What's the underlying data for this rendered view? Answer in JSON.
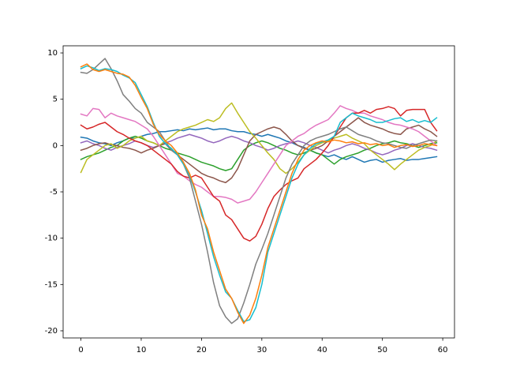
{
  "chart_data": {
    "type": "line",
    "x": [
      0,
      1,
      2,
      3,
      4,
      5,
      6,
      7,
      8,
      9,
      10,
      11,
      12,
      13,
      14,
      15,
      16,
      17,
      18,
      19,
      20,
      21,
      22,
      23,
      24,
      25,
      26,
      27,
      28,
      29,
      30,
      31,
      32,
      33,
      34,
      35,
      36,
      37,
      38,
      39,
      40,
      41,
      42,
      43,
      44,
      45,
      46,
      47,
      48,
      49,
      50,
      51,
      52,
      53,
      54,
      55,
      56,
      57,
      58,
      59
    ],
    "xlim": [
      -2.95,
      61.95
    ],
    "xticks": [
      0,
      10,
      20,
      30,
      40,
      50,
      60
    ],
    "ylim": [
      -20.77,
      10.77
    ],
    "yticks": [
      -20,
      -15,
      -10,
      -5,
      0,
      5,
      10
    ],
    "series": [
      {
        "color": "#1f77b4",
        "values": [
          0.9,
          0.8,
          0.5,
          0.3,
          0.2,
          0.0,
          0.3,
          0.5,
          0.8,
          0.8,
          1.0,
          1.2,
          1.3,
          1.5,
          1.5,
          1.6,
          1.7,
          1.6,
          1.8,
          1.7,
          1.8,
          1.9,
          1.7,
          1.8,
          1.8,
          1.6,
          1.5,
          1.5,
          1.3,
          1.2,
          1.0,
          1.2,
          1.0,
          0.8,
          0.5,
          0.3,
          0.0,
          -0.2,
          -0.5,
          -0.8,
          -1.0,
          -1.2,
          -1.0,
          -1.3,
          -1.5,
          -1.2,
          -1.5,
          -1.8,
          -1.6,
          -1.5,
          -1.8,
          -1.6,
          -1.5,
          -1.4,
          -1.6,
          -1.5,
          -1.5,
          -1.4,
          -1.3,
          -1.2
        ]
      },
      {
        "color": "#2ca02c",
        "values": [
          -1.5,
          -1.2,
          -1.0,
          -0.8,
          -0.5,
          -0.2,
          0.0,
          0.5,
          0.8,
          1.0,
          0.8,
          0.5,
          0.3,
          0.0,
          -0.3,
          -0.5,
          -0.8,
          -1.0,
          -1.2,
          -1.5,
          -1.8,
          -2.0,
          -2.2,
          -2.5,
          -2.7,
          -2.5,
          -1.5,
          -0.5,
          0.0,
          0.3,
          0.5,
          0.3,
          0.0,
          -0.3,
          -0.5,
          -0.8,
          -1.0,
          -0.8,
          -0.5,
          -0.8,
          -1.0,
          -1.5,
          -2.0,
          -1.5,
          -1.2,
          -1.0,
          -0.8,
          -0.5,
          -0.3,
          0.0,
          0.2,
          0.3,
          0.5,
          0.3,
          0.2,
          0.0,
          -0.2,
          0.0,
          0.2,
          0.3
        ]
      },
      {
        "color": "#9467bd",
        "values": [
          0.3,
          0.5,
          0.2,
          0.0,
          -0.3,
          -0.5,
          -0.2,
          0.0,
          0.2,
          0.5,
          0.3,
          0.0,
          -0.2,
          0.0,
          0.3,
          0.5,
          0.8,
          1.0,
          1.2,
          1.0,
          0.8,
          0.5,
          0.3,
          0.5,
          0.8,
          1.0,
          0.8,
          0.5,
          0.3,
          0.0,
          -0.2,
          -0.5,
          -0.3,
          0.0,
          0.2,
          0.3,
          0.5,
          0.3,
          0.0,
          -0.2,
          -0.5,
          -0.8,
          -0.5,
          -0.3,
          0.0,
          0.2,
          0.0,
          -0.3,
          -0.5,
          -0.8,
          -1.0,
          -0.8,
          -0.5,
          -0.3,
          0.0,
          0.2,
          0.0,
          -0.2,
          -0.3,
          -0.5
        ]
      },
      {
        "color": "#8c564b",
        "values": [
          -0.5,
          -0.3,
          0.0,
          0.2,
          0.3,
          0.1,
          0.0,
          -0.2,
          -0.3,
          -0.5,
          -0.8,
          -0.5,
          -0.3,
          0.0,
          0.2,
          -0.5,
          -1.0,
          -1.5,
          -2.0,
          -2.5,
          -3.0,
          -3.3,
          -3.5,
          -3.8,
          -4.0,
          -3.5,
          -2.5,
          -1.0,
          0.5,
          1.2,
          1.5,
          1.8,
          2.0,
          1.8,
          1.2,
          0.5,
          0.0,
          -0.3,
          -0.5,
          -0.3,
          0.0,
          0.5,
          1.0,
          1.5,
          2.0,
          2.5,
          3.0,
          2.5,
          2.2,
          2.0,
          1.8,
          1.5,
          1.3,
          1.2,
          1.8,
          2.0,
          2.2,
          1.8,
          1.5,
          1.0
        ]
      },
      {
        "color": "#bcbd22",
        "values": [
          -2.9,
          -1.5,
          -1.0,
          -0.5,
          0.0,
          0.2,
          -0.3,
          0.0,
          0.5,
          0.8,
          1.0,
          0.5,
          0.3,
          0.0,
          0.5,
          1.0,
          1.5,
          1.8,
          2.0,
          2.2,
          2.5,
          2.8,
          2.6,
          3.0,
          4.0,
          4.6,
          3.5,
          2.5,
          1.5,
          0.8,
          0.0,
          -0.8,
          -1.5,
          -2.5,
          -3.0,
          -2.5,
          -1.8,
          -1.0,
          -0.5,
          0.0,
          0.3,
          0.5,
          0.8,
          1.0,
          1.2,
          0.8,
          0.5,
          0.2,
          -0.5,
          -1.0,
          -1.5,
          -2.0,
          -2.6,
          -2.0,
          -1.5,
          -1.0,
          -0.5,
          -0.2,
          0.0,
          0.5
        ]
      },
      {
        "color": "#e377c2",
        "values": [
          3.4,
          3.2,
          4.0,
          3.9,
          3.0,
          3.5,
          3.2,
          3.0,
          2.8,
          2.6,
          2.2,
          1.8,
          1.0,
          0.0,
          -1.0,
          -2.0,
          -3.0,
          -3.3,
          -3.8,
          -4.2,
          -4.5,
          -5.0,
          -5.5,
          -5.5,
          -5.6,
          -5.8,
          -6.2,
          -6.0,
          -5.8,
          -5.0,
          -4.0,
          -3.0,
          -2.0,
          -1.0,
          0.0,
          0.5,
          1.0,
          1.3,
          1.8,
          2.2,
          2.5,
          2.8,
          3.5,
          4.3,
          4.0,
          3.8,
          3.5,
          3.5,
          3.2,
          3.0,
          2.8,
          2.5,
          2.3,
          2.2,
          2.0,
          1.8,
          1.5,
          1.0,
          0.5,
          0.0
        ]
      },
      {
        "color": "#d62728",
        "values": [
          2.2,
          1.8,
          2.0,
          2.3,
          2.5,
          2.0,
          1.5,
          1.2,
          0.8,
          0.5,
          0.3,
          0.0,
          -0.5,
          -1.0,
          -1.5,
          -2.0,
          -2.8,
          -3.3,
          -3.5,
          -3.2,
          -3.5,
          -4.5,
          -5.5,
          -6.0,
          -7.5,
          -8.0,
          -9.0,
          -10.0,
          -10.3,
          -9.8,
          -8.5,
          -6.8,
          -5.5,
          -4.8,
          -4.2,
          -3.8,
          -3.5,
          -2.5,
          -2.0,
          -1.5,
          -0.8,
          0.0,
          1.0,
          2.0,
          3.0,
          3.5,
          3.5,
          3.8,
          3.5,
          3.9,
          4.0,
          4.2,
          4.0,
          3.2,
          3.8,
          3.9,
          3.9,
          3.9,
          2.5,
          1.6
        ]
      },
      {
        "color": "#7f7f7f",
        "values": [
          7.9,
          7.8,
          8.2,
          8.8,
          9.4,
          8.3,
          7.0,
          5.5,
          4.8,
          4.0,
          3.5,
          2.5,
          2.0,
          1.5,
          0.5,
          -0.5,
          -1.0,
          -2.0,
          -3.5,
          -6.0,
          -8.5,
          -11.5,
          -14.8,
          -17.3,
          -18.5,
          -19.2,
          -18.7,
          -17.0,
          -15.0,
          -12.8,
          -11.2,
          -9.5,
          -7.5,
          -5.5,
          -3.5,
          -2.0,
          -1.0,
          0.0,
          0.5,
          0.8,
          1.0,
          1.2,
          1.5,
          1.8,
          2.0,
          1.6,
          1.2,
          1.0,
          0.8,
          0.5,
          0.3,
          0.2,
          0.0,
          -0.2,
          -0.3,
          0.0,
          0.2,
          0.4,
          0.6,
          0.5
        ]
      },
      {
        "color": "#17becf",
        "values": [
          8.3,
          8.6,
          8.4,
          8.1,
          8.3,
          8.2,
          8.0,
          7.6,
          7.3,
          6.8,
          5.5,
          4.2,
          2.5,
          1.0,
          0.2,
          -0.3,
          -1.0,
          -2.0,
          -3.2,
          -5.0,
          -7.0,
          -9.5,
          -12.0,
          -14.0,
          -15.8,
          -16.5,
          -17.8,
          -19.0,
          -18.8,
          -17.5,
          -15.0,
          -11.5,
          -9.5,
          -7.5,
          -5.5,
          -3.5,
          -2.0,
          -1.0,
          -0.3,
          0.2,
          0.4,
          0.6,
          1.0,
          2.5,
          3.0,
          3.5,
          3.2,
          3.0,
          2.8,
          2.5,
          2.5,
          2.7,
          2.9,
          3.0,
          2.6,
          2.8,
          2.5,
          2.7,
          2.5,
          3.0
        ]
      },
      {
        "color": "#ff7f0e",
        "values": [
          8.5,
          8.8,
          8.2,
          8.0,
          8.2,
          8.0,
          7.8,
          7.7,
          7.4,
          6.5,
          5.2,
          4.0,
          2.3,
          1.2,
          0.5,
          0.0,
          -0.8,
          -1.8,
          -3.0,
          -4.8,
          -7.5,
          -9.0,
          -11.5,
          -13.5,
          -15.5,
          -16.5,
          -18.0,
          -19.2,
          -18.3,
          -16.5,
          -14.0,
          -11.0,
          -9.0,
          -7.0,
          -5.0,
          -3.0,
          -1.5,
          -0.5,
          0.0,
          0.3,
          0.5,
          0.4,
          0.6,
          0.5,
          0.3,
          0.4,
          0.2,
          0.3,
          0.1,
          0.2,
          0.0,
          0.1,
          -0.2,
          0.0,
          0.1,
          -0.1,
          0.0,
          0.2,
          0.1,
          0.0
        ]
      }
    ]
  }
}
